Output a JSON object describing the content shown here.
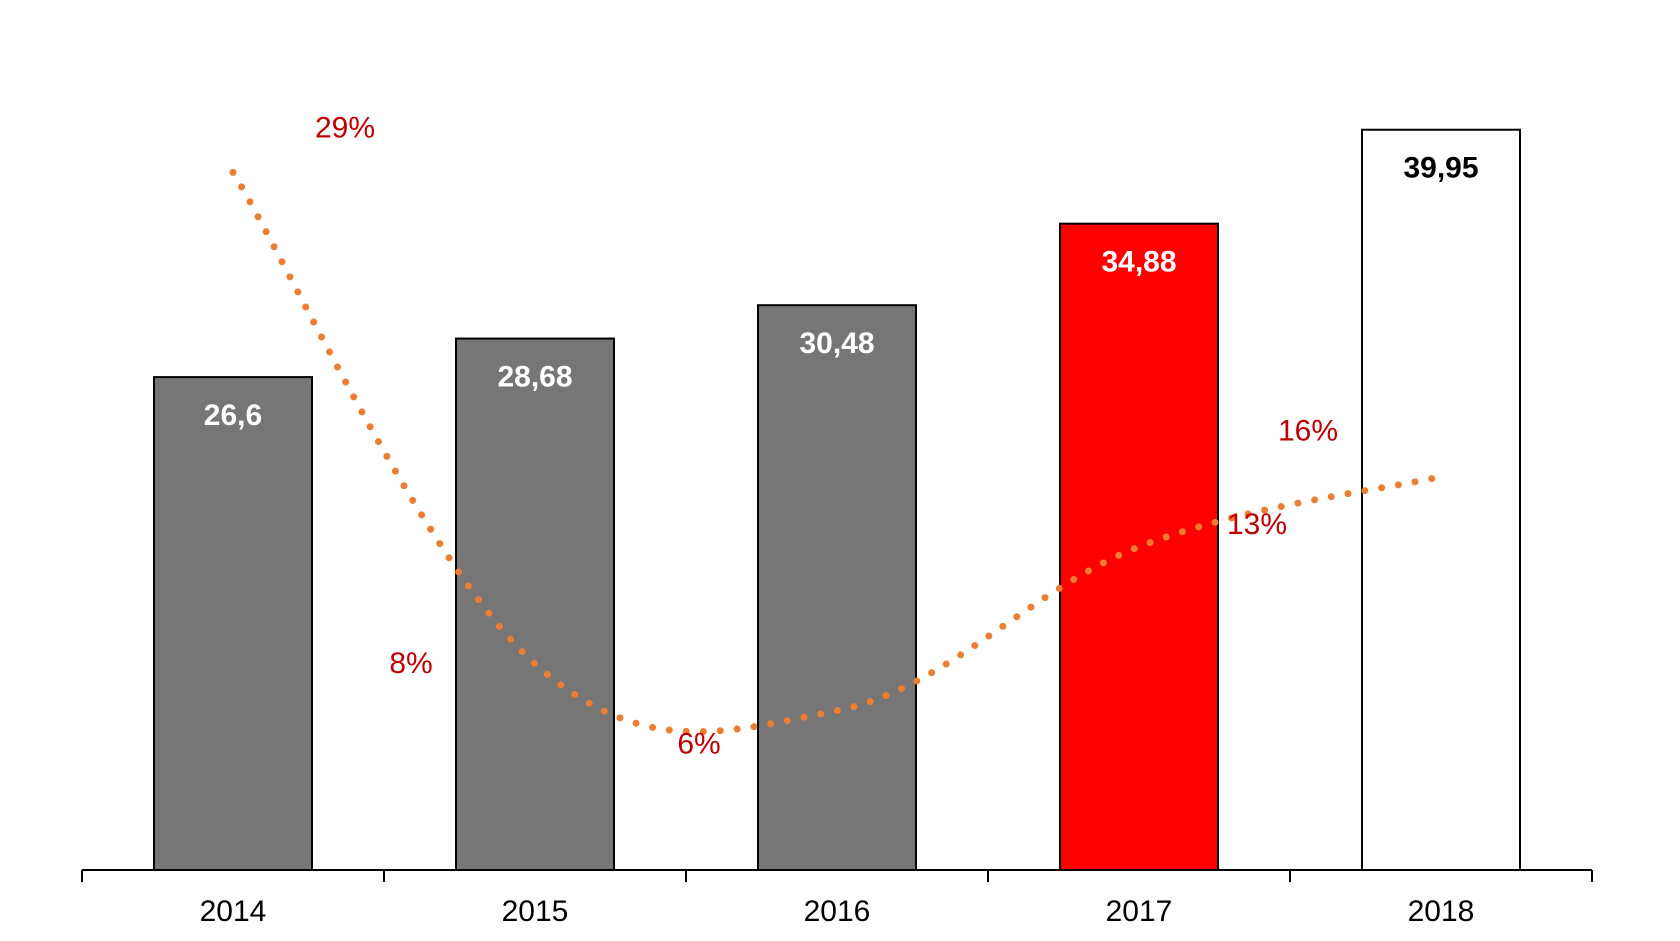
{
  "chart_data": {
    "type": "bar",
    "categories": [
      "2014",
      "2015",
      "2016",
      "2017",
      "2018"
    ],
    "values": [
      26.6,
      28.68,
      30.48,
      34.88,
      39.95
    ],
    "value_labels": [
      "26,6",
      "28,68",
      "30,48",
      "34,88",
      "39,95"
    ],
    "bar_colors": [
      "#767676",
      "#767676",
      "#767676",
      "#ff0000",
      "#ffffff"
    ],
    "value_label_colors": [
      "#ffffff",
      "#ffffff",
      "#ffffff",
      "#ffffff",
      "#000000"
    ],
    "growth_line": {
      "type": "line",
      "style": "dotted",
      "color": "#ed7d31",
      "x": [
        "2014",
        "2015",
        "2016",
        "2017",
        "2018"
      ],
      "values": [
        29,
        8,
        6,
        13,
        16
      ],
      "labels": [
        "29%",
        "8%",
        "6%",
        "13%",
        "16%"
      ],
      "label_color": "#c00000"
    },
    "ylim": [
      0,
      40
    ],
    "grid": false,
    "legend": "none",
    "title": "",
    "xlabel": "",
    "ylabel": ""
  }
}
